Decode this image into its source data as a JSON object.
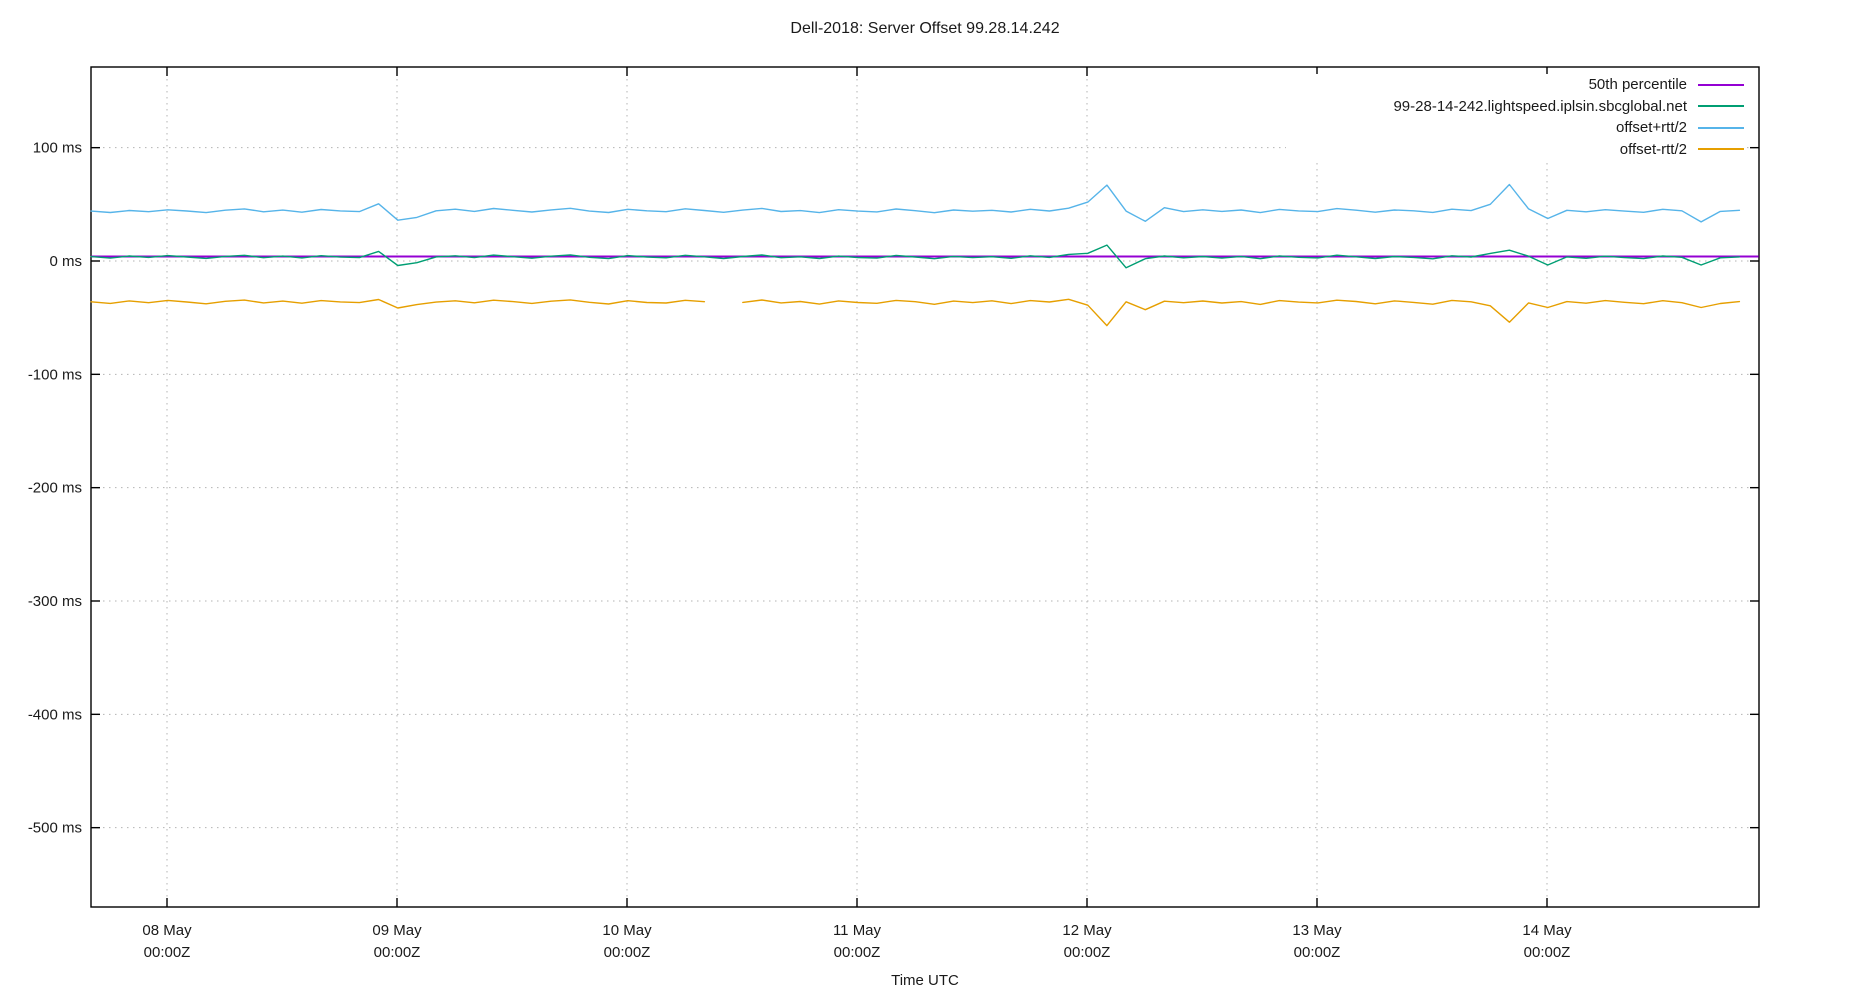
{
  "title": "Dell-2018: Server Offset 99.28.14.242",
  "xlabel": "Time UTC",
  "legend": {
    "entries": [
      {
        "label": "50th percentile",
        "color": "#9400d3"
      },
      {
        "label": "99-28-14-242.lightspeed.iplsin.sbcglobal.net",
        "color": "#009e73"
      },
      {
        "label": "offset+rtt/2",
        "color": "#56b4e9"
      },
      {
        "label": "offset-rtt/2",
        "color": "#e69f00"
      }
    ]
  },
  "chart_data": {
    "type": "line",
    "title": "Dell-2018: Server Offset 99.28.14.242",
    "xlabel": "Time UTC",
    "ylabel": "",
    "y_unit": "ms",
    "ylim_ms": [
      -570,
      172
    ],
    "xlim_days_from_08_may": [
      -0.33,
      6.92
    ],
    "grid": true,
    "grid_style": "dotted",
    "legend_position": "top-right-inside-opaque",
    "y_ticks": [
      {
        "value": 100,
        "label": "100 ms"
      },
      {
        "value": 0,
        "label": "0 ms"
      },
      {
        "value": -100,
        "label": "-100 ms"
      },
      {
        "value": -200,
        "label": "-200 ms"
      },
      {
        "value": -300,
        "label": "-300 ms"
      },
      {
        "value": -400,
        "label": "-400 ms"
      },
      {
        "value": -500,
        "label": "-500 ms"
      }
    ],
    "x_ticks": [
      {
        "value": 0,
        "line1": "08 May",
        "line2": "00:00Z"
      },
      {
        "value": 1,
        "line1": "09 May",
        "line2": "00:00Z"
      },
      {
        "value": 2,
        "line1": "10 May",
        "line2": "00:00Z"
      },
      {
        "value": 3,
        "line1": "11 May",
        "line2": "00:00Z"
      },
      {
        "value": 4,
        "line1": "12 May",
        "line2": "00:00Z"
      },
      {
        "value": 5,
        "line1": "13 May",
        "line2": "00:00Z"
      },
      {
        "value": 6,
        "line1": "14 May",
        "line2": "00:00Z"
      }
    ],
    "series": [
      {
        "name": "50th percentile",
        "color": "#9400d3",
        "type": "flat",
        "value_ms": 4.0,
        "t_start_days": -0.33,
        "t_end_days": 6.92
      },
      {
        "name": "99-28-14-242.lightspeed.iplsin.sbcglobal.net",
        "color": "#009e73",
        "type": "sampled",
        "t0_days": -0.33,
        "dt_days": 0.0833333,
        "values_ms": [
          3.9,
          2.6,
          4.4,
          3.2,
          4.8,
          3.5,
          2.3,
          4.1,
          5.0,
          2.9,
          4.3,
          2.7,
          4.7,
          3.4,
          3.0,
          8.5,
          -4.0,
          -1.5,
          3.6,
          4.6,
          3.0,
          5.2,
          3.8,
          2.5,
          4.2,
          5.4,
          3.3,
          2.1,
          4.8,
          3.5,
          2.8,
          5.0,
          3.7,
          2.2,
          4.0,
          5.3,
          2.9,
          3.7,
          2.2,
          4.3,
          3.1,
          2.6,
          4.9,
          3.5,
          2.0,
          4.1,
          3.0,
          3.8,
          2.4,
          4.6,
          3.2,
          5.8,
          6.8,
          14.0,
          -6.0,
          2.0,
          4.4,
          2.8,
          4.0,
          2.6,
          4.1,
          2.0,
          4.5,
          3.3,
          2.7,
          5.1,
          3.7,
          2.2,
          4.0,
          3.2,
          1.9,
          4.6,
          3.5,
          6.7,
          9.5,
          4.2,
          -3.5,
          3.6,
          2.4,
          4.2,
          3.0,
          2.1,
          4.4,
          3.3,
          -3.5,
          2.8,
          3.6
        ]
      },
      {
        "name": "offset+rtt/2",
        "color": "#56b4e9",
        "type": "sampled",
        "t0_days": -0.33,
        "dt_days": 0.0833333,
        "values_ms": [
          44.0,
          42.8,
          44.6,
          43.5,
          45.2,
          44.1,
          42.7,
          44.8,
          46.0,
          43.4,
          44.9,
          43.1,
          45.4,
          44.2,
          43.6,
          50.5,
          36.0,
          38.5,
          44.3,
          45.7,
          43.8,
          46.3,
          44.7,
          43.2,
          45.1,
          46.5,
          44.0,
          42.8,
          45.6,
          44.3,
          43.5,
          46.1,
          44.6,
          43.0,
          44.9,
          46.4,
          43.7,
          44.5,
          42.7,
          45.3,
          44.0,
          43.3,
          45.9,
          44.4,
          42.6,
          45.0,
          43.9,
          44.7,
          43.2,
          45.6,
          44.1,
          46.6,
          52.0,
          67.0,
          44.0,
          35.0,
          47.0,
          43.6,
          45.2,
          43.8,
          45.0,
          42.7,
          45.5,
          44.2,
          43.6,
          46.2,
          44.8,
          43.1,
          45.0,
          44.3,
          42.9,
          45.7,
          44.5,
          50.0,
          67.5,
          46.0,
          37.5,
          44.7,
          43.4,
          45.3,
          44.0,
          43.0,
          45.6,
          44.3,
          34.5,
          43.8,
          44.7
        ]
      },
      {
        "name": "offset-rtt/2",
        "color": "#e69f00",
        "type": "sampled",
        "t0_days": -0.33,
        "dt_days": 0.0833333,
        "values_ms": [
          -36.0,
          -37.4,
          -35.2,
          -36.8,
          -34.8,
          -36.2,
          -37.8,
          -35.6,
          -34.5,
          -37.0,
          -35.4,
          -37.2,
          -34.9,
          -36.1,
          -36.7,
          -34.0,
          -41.5,
          -38.5,
          -36.3,
          -35.1,
          -36.9,
          -34.6,
          -35.8,
          -37.4,
          -35.5,
          -34.3,
          -36.4,
          -37.9,
          -35.0,
          -36.6,
          -37.1,
          -34.7,
          -35.9,
          null,
          -36.5,
          -34.4,
          -37.0,
          -35.7,
          -38.0,
          -35.2,
          -36.6,
          -37.3,
          -34.8,
          -35.9,
          -38.2,
          -35.4,
          -36.7,
          -35.1,
          -37.6,
          -34.9,
          -36.2,
          -33.8,
          -39.0,
          -57.0,
          -36.0,
          -43.0,
          -35.5,
          -36.8,
          -35.3,
          -37.1,
          -35.8,
          -38.3,
          -34.9,
          -36.3,
          -37.0,
          -34.6,
          -35.7,
          -37.8,
          -35.2,
          -36.5,
          -38.1,
          -34.8,
          -36.0,
          -39.5,
          -54.0,
          -37.0,
          -41.0,
          -35.8,
          -37.2,
          -34.9,
          -36.4,
          -37.7,
          -35.0,
          -36.8,
          -41.0,
          -37.5,
          -35.8
        ]
      }
    ]
  }
}
